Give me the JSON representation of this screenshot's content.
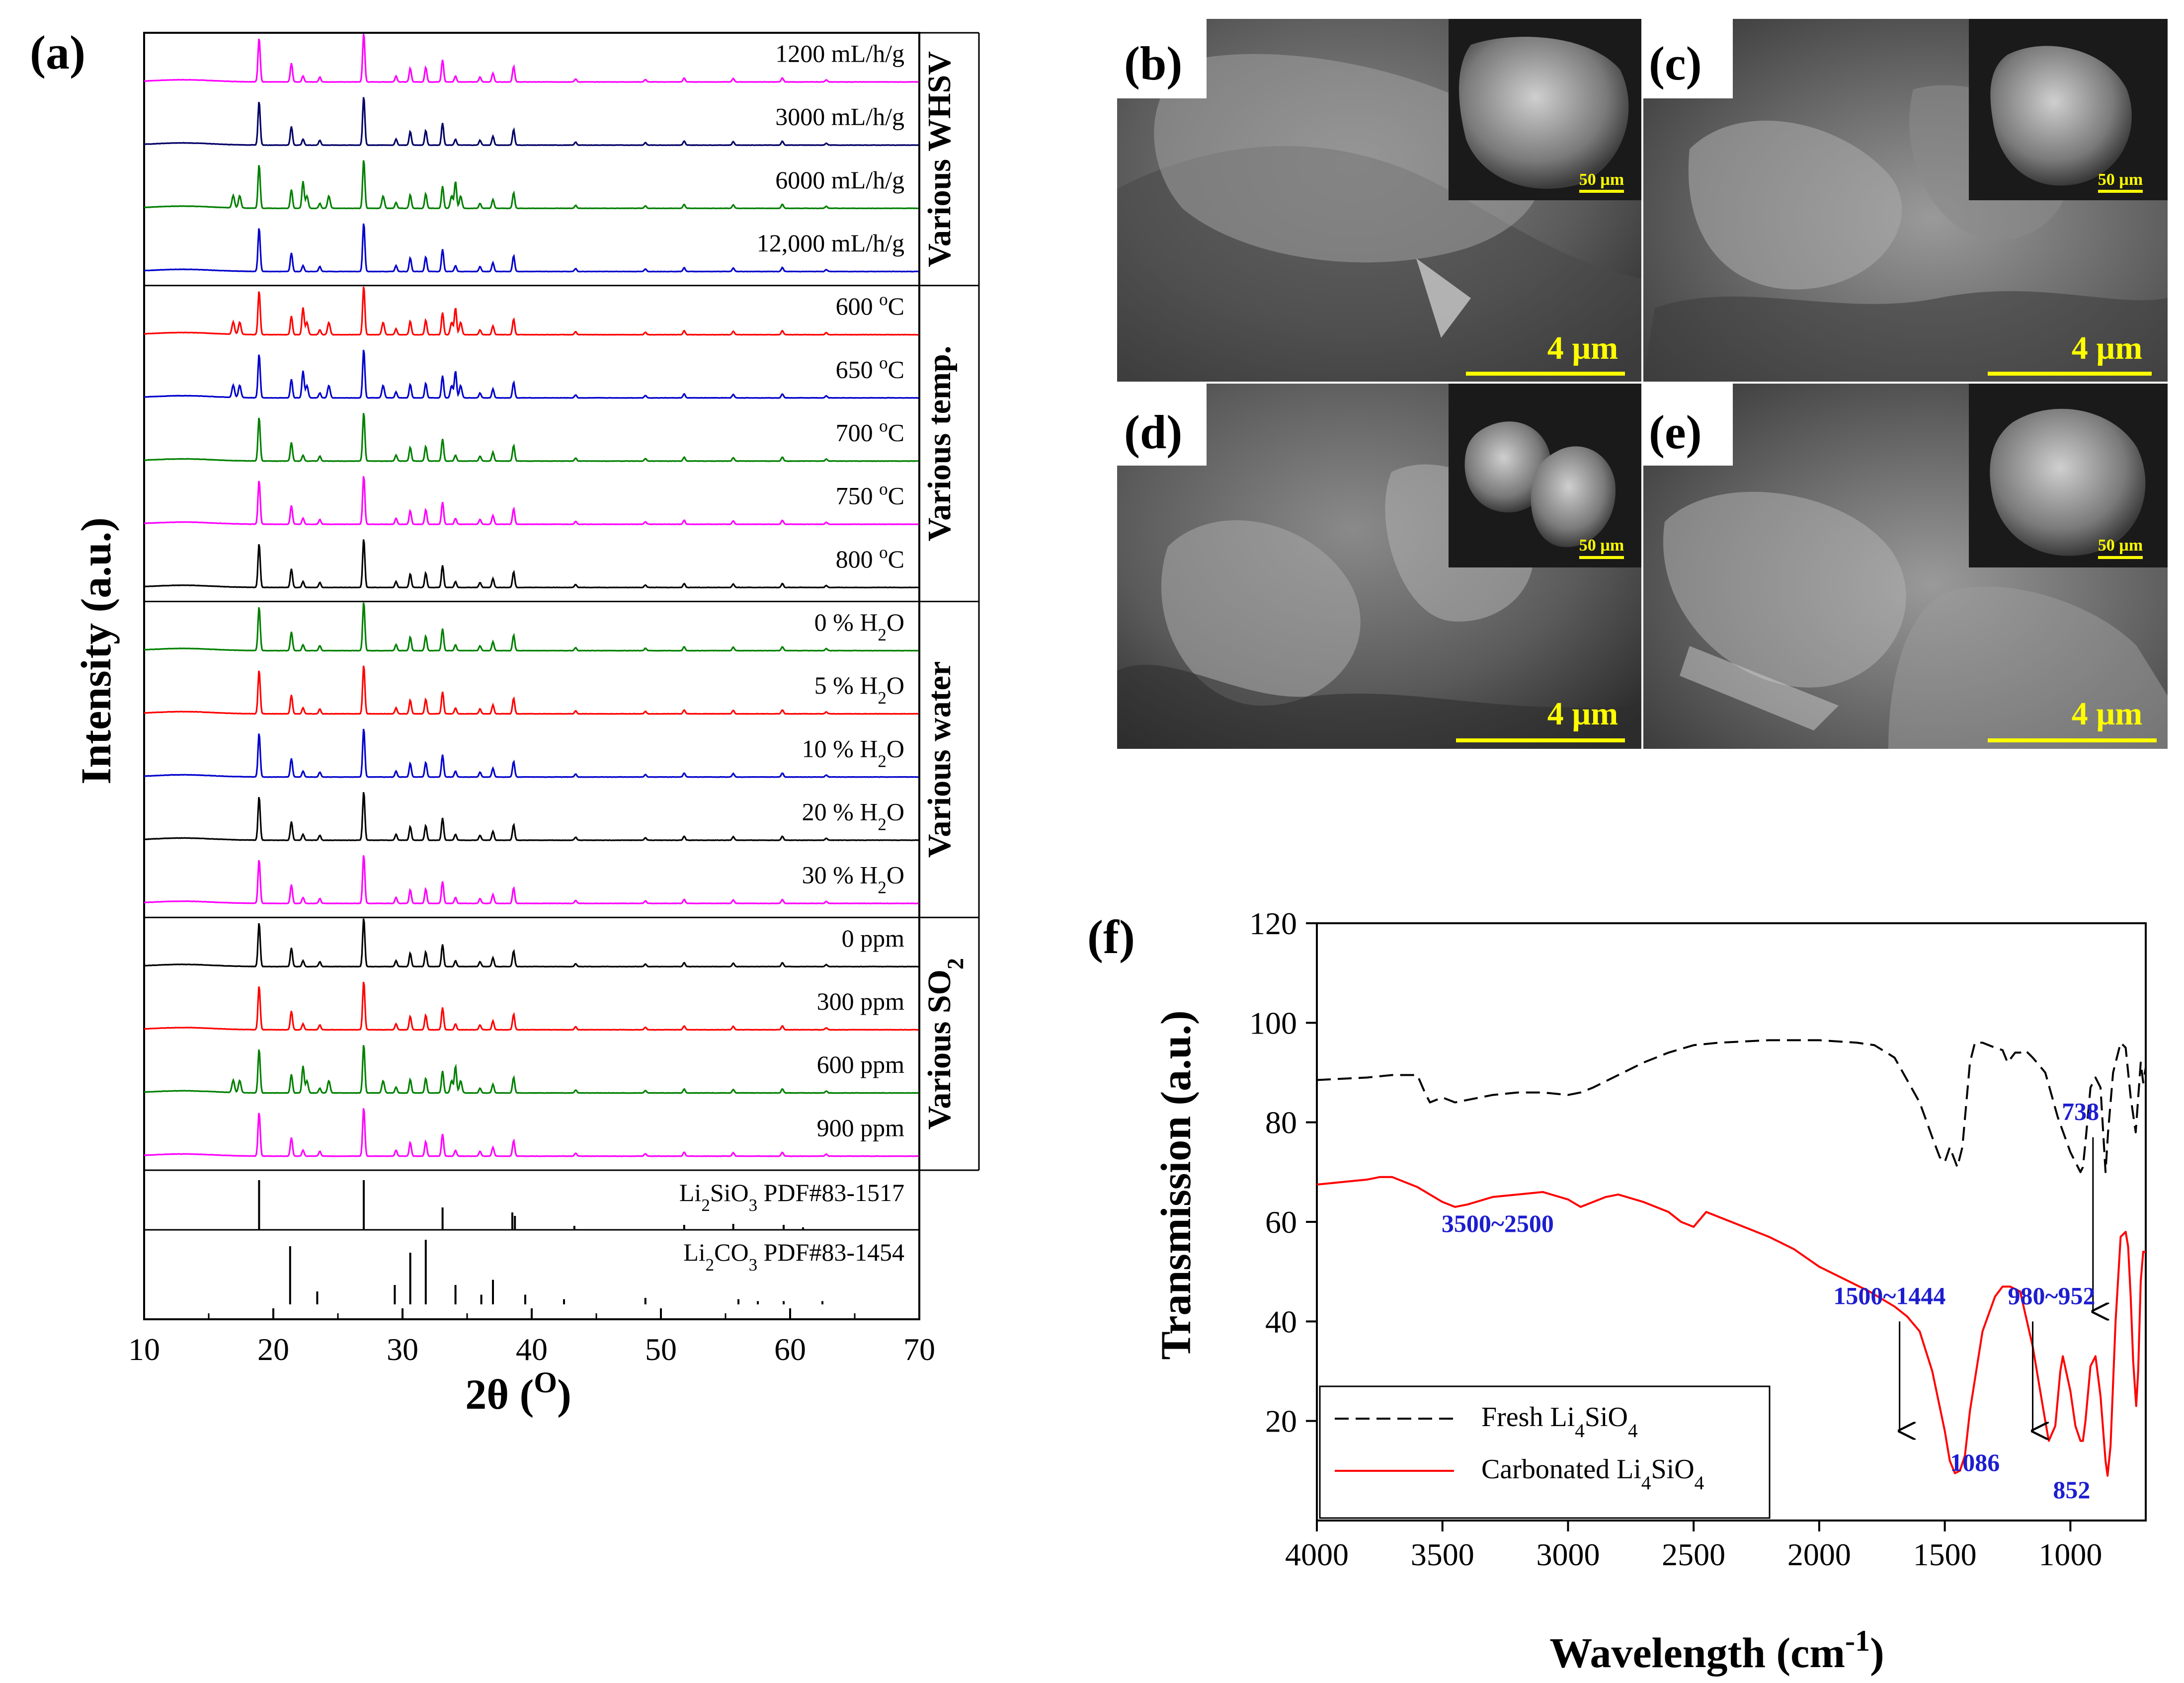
{
  "panels": {
    "a": "(a)",
    "b": "(b)",
    "c": "(c)",
    "d": "(d)",
    "e": "(e)",
    "f": "(f)"
  },
  "sem": {
    "b": {
      "scale": "4 µm",
      "inset_scale": "50 µm"
    },
    "c": {
      "scale": "4 µm",
      "inset_scale": "50 µm"
    },
    "d": {
      "scale": "4 µm",
      "inset_scale": "50 µm"
    },
    "e": {
      "scale": "4 µm",
      "inset_scale": "50 µm"
    }
  },
  "chart_data": [
    {
      "id": "xrd",
      "type": "line",
      "title": "",
      "xlabel": "2θ (O)",
      "xlabel_text": "2θ (",
      "xlabel_sup": "O",
      "xlabel_end": ")",
      "ylabel": "Intensity (a.u.)",
      "xlim": [
        10,
        70
      ],
      "x_ticks": [
        10,
        20,
        30,
        40,
        50,
        60,
        70
      ],
      "peak_positions": [
        18.9,
        21.4,
        22.3,
        23.6,
        27.0,
        29.5,
        30.6,
        31.8,
        33.1,
        34.1,
        36.0,
        37.0,
        38.6,
        43.4,
        48.8,
        51.8,
        55.6,
        59.4,
        62.8
      ],
      "groups": [
        {
          "label": "Various WHSV",
          "series": [
            {
              "name": "1200 mL/h/g",
              "color": "#ff00ff"
            },
            {
              "name": "3000 mL/h/g",
              "color": "#000066"
            },
            {
              "name": "6000 mL/h/g",
              "color": "#008000"
            },
            {
              "name": "12,000 mL/h/g",
              "color": "#0000cc"
            }
          ]
        },
        {
          "label": "Various temp.",
          "series": [
            {
              "name": "600 oC",
              "text": "600 ",
              "sup": "o",
              "tail": "C",
              "color": "#ff0000"
            },
            {
              "name": "650 oC",
              "text": "650 ",
              "sup": "o",
              "tail": "C",
              "color": "#0000cc"
            },
            {
              "name": "700 oC",
              "text": "700 ",
              "sup": "o",
              "tail": "C",
              "color": "#008000"
            },
            {
              "name": "750 oC",
              "text": "750 ",
              "sup": "o",
              "tail": "C",
              "color": "#ff00ff"
            },
            {
              "name": "800 oC",
              "text": "800 ",
              "sup": "o",
              "tail": "C",
              "color": "#000000"
            }
          ]
        },
        {
          "label": "Various water",
          "series": [
            {
              "name": "0 % H2O",
              "text": "0 % H",
              "sub": "2",
              "tail": "O",
              "color": "#008000"
            },
            {
              "name": "5 % H2O",
              "text": "5 % H",
              "sub": "2",
              "tail": "O",
              "color": "#ff0000"
            },
            {
              "name": "10 % H2O",
              "text": "10 % H",
              "sub": "2",
              "tail": "O",
              "color": "#0000cc"
            },
            {
              "name": "20 % H2O",
              "text": "20 % H",
              "sub": "2",
              "tail": "O",
              "color": "#000000"
            },
            {
              "name": "30 % H2O",
              "text": "30 % H",
              "sub": "2",
              "tail": "O",
              "color": "#ff00ff"
            }
          ]
        },
        {
          "label": "Various SO2",
          "label_text": "Various SO",
          "label_sub": "2",
          "series": [
            {
              "name": "0 ppm",
              "color": "#000000"
            },
            {
              "name": "300 ppm",
              "color": "#ff0000"
            },
            {
              "name": "600 ppm",
              "color": "#008000"
            },
            {
              "name": "900 ppm",
              "color": "#ff00ff"
            }
          ]
        }
      ],
      "references": [
        {
          "name": "Li2SiO3 PDF#83-1517",
          "pre": "Li",
          "sub": "2",
          "post": "SiO",
          "sub2": "3",
          "end": " PDF#83-1517",
          "sticks": [
            [
              18.9,
              1.0
            ],
            [
              27.0,
              1.0
            ],
            [
              33.1,
              0.45
            ],
            [
              38.5,
              0.35
            ],
            [
              38.7,
              0.28
            ],
            [
              43.3,
              0.08
            ],
            [
              51.8,
              0.1
            ],
            [
              55.6,
              0.12
            ],
            [
              59.5,
              0.1
            ],
            [
              61.0,
              0.05
            ]
          ]
        },
        {
          "name": "Li2CO3 PDF#83-1454",
          "pre": "Li",
          "sub": "2",
          "post": "CO",
          "sub2": "3",
          "end": " PDF#83-1454",
          "sticks": [
            [
              21.3,
              0.9
            ],
            [
              23.4,
              0.2
            ],
            [
              29.4,
              0.3
            ],
            [
              30.6,
              0.8
            ],
            [
              31.8,
              1.0
            ],
            [
              34.1,
              0.3
            ],
            [
              36.1,
              0.15
            ],
            [
              37.0,
              0.38
            ],
            [
              39.5,
              0.15
            ],
            [
              42.5,
              0.08
            ],
            [
              48.8,
              0.1
            ],
            [
              56.0,
              0.08
            ],
            [
              57.5,
              0.05
            ],
            [
              59.5,
              0.05
            ],
            [
              62.5,
              0.05
            ]
          ]
        }
      ]
    },
    {
      "id": "ftir",
      "type": "line",
      "title": "",
      "xlabel": "Wavelength (cm-1)",
      "xlabel_text": "Wavelength (cm",
      "xlabel_sup": "-1",
      "xlabel_end": ")",
      "ylabel": "Transmission (a.u.)",
      "xlim": [
        4000,
        700
      ],
      "ylim": [
        0,
        120
      ],
      "x_ticks": [
        4000,
        3500,
        3000,
        2500,
        2000,
        1500,
        1000
      ],
      "y_ticks": [
        20,
        40,
        60,
        80,
        100,
        120
      ],
      "series": [
        {
          "name": "Fresh Li4SiO4",
          "pre": "Fresh Li",
          "sub": "4",
          "post": "SiO",
          "sub2": "4",
          "color": "#000000",
          "dash": "28,14",
          "x": [
            4000,
            3800,
            3700,
            3600,
            3570,
            3550,
            3500,
            3450,
            3400,
            3300,
            3200,
            3100,
            3000,
            2950,
            2900,
            2800,
            2700,
            2600,
            2500,
            2400,
            2200,
            2000,
            1850,
            1780,
            1700,
            1600,
            1550,
            1520,
            1500,
            1480,
            1450,
            1430,
            1400,
            1380,
            1350,
            1300,
            1270,
            1250,
            1220,
            1200,
            1180,
            1150,
            1100,
            1050,
            1000,
            980,
            960,
            950,
            940,
            920,
            900,
            880,
            860,
            850,
            830,
            800,
            780,
            760,
            740,
            720,
            710,
            700
          ],
          "y": [
            88.5,
            89,
            89.5,
            89.5,
            86,
            84,
            85,
            84,
            84.5,
            85.5,
            86,
            86,
            85.5,
            86,
            87,
            89.5,
            92,
            94,
            95.5,
            96,
            96.5,
            96.5,
            96,
            95.5,
            93,
            84,
            77,
            73,
            72,
            75,
            71,
            75,
            92,
            96,
            96,
            95,
            94.5,
            92,
            94,
            94,
            94.5,
            93,
            90,
            81,
            74,
            72,
            70,
            71,
            76,
            87,
            89,
            87,
            70,
            78,
            90,
            96,
            95,
            85,
            78,
            92,
            88,
            91
          ]
        },
        {
          "name": "Carbonated Li4SiO4",
          "pre": "Carbonated Li",
          "sub": "4",
          "post": "SiO",
          "sub2": "4",
          "color": "#ff0000",
          "dash": "",
          "x": [
            4000,
            3900,
            3800,
            3750,
            3700,
            3600,
            3500,
            3450,
            3400,
            3300,
            3200,
            3100,
            3000,
            2950,
            2900,
            2850,
            2800,
            2700,
            2600,
            2550,
            2500,
            2450,
            2400,
            2300,
            2200,
            2100,
            2000,
            1900,
            1800,
            1700,
            1650,
            1600,
            1550,
            1500,
            1480,
            1460,
            1440,
            1420,
            1400,
            1350,
            1300,
            1270,
            1240,
            1200,
            1150,
            1100,
            1086,
            1060,
            1040,
            1030,
            1000,
            980,
            960,
            950,
            940,
            920,
            900,
            880,
            860,
            852,
            840,
            820,
            800,
            780,
            770,
            760,
            750,
            738,
            730,
            720,
            710,
            700
          ],
          "y": [
            67.5,
            68,
            68.5,
            69,
            69,
            67,
            64,
            63,
            63.5,
            65,
            65.5,
            66,
            64.5,
            63,
            64,
            65,
            65.5,
            64,
            62,
            60,
            59,
            62,
            61,
            59,
            57,
            54.5,
            51,
            48.5,
            46,
            43,
            41,
            38,
            30,
            18,
            12,
            9.5,
            10,
            13,
            22,
            38,
            45,
            47,
            47,
            46,
            35,
            20,
            16,
            19,
            30,
            33,
            26,
            19,
            16,
            16,
            20,
            31,
            33,
            25,
            12,
            9,
            15,
            40,
            57,
            58,
            55,
            45,
            32,
            23,
            30,
            48,
            54,
            54
          ]
        }
      ],
      "annotations": [
        {
          "text": "3500~2500",
          "x": 3280,
          "y": 58
        },
        {
          "text": "1500~1444",
          "x": 1720,
          "y": 43.5
        },
        {
          "text": "1086",
          "x": 1380,
          "y": 10
        },
        {
          "text": "980~952",
          "x": 1075,
          "y": 43.5
        },
        {
          "text": "738",
          "x": 960,
          "y": 80.5
        },
        {
          "text": "852",
          "x": 995,
          "y": 4.5
        }
      ],
      "arrows": [
        {
          "x": 1680,
          "y_from": 40,
          "y_to": 18
        },
        {
          "x": 1150,
          "y_from": 40,
          "y_to": 18
        },
        {
          "x": 910,
          "y_from": 77,
          "y_to": 42
        }
      ]
    }
  ]
}
